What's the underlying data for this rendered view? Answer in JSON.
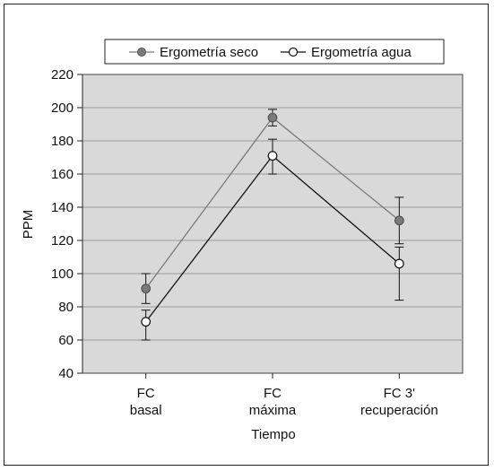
{
  "chart_data": {
    "type": "line",
    "xlabel": "Tiempo",
    "ylabel": "PPM",
    "ylim": [
      40,
      220
    ],
    "yticks": [
      40,
      60,
      80,
      100,
      120,
      140,
      160,
      180,
      200,
      220
    ],
    "grid": true,
    "legend": "top",
    "categories": [
      [
        "FC",
        "basal"
      ],
      [
        "FC",
        "máxima"
      ],
      [
        "FC 3'",
        "recuperación"
      ]
    ],
    "series": [
      {
        "name": "Ergometría seco",
        "marker": "filled-circle",
        "color": "#7a7a7a",
        "values": [
          91,
          194,
          132
        ],
        "error_low": [
          82,
          189,
          118
        ],
        "error_high": [
          100,
          199,
          146
        ]
      },
      {
        "name": "Ergometría agua",
        "marker": "open-circle",
        "color": "#111111",
        "values": [
          71,
          171,
          106
        ],
        "error_low": [
          60,
          160,
          84
        ],
        "error_high": [
          78,
          181,
          116
        ]
      }
    ]
  }
}
